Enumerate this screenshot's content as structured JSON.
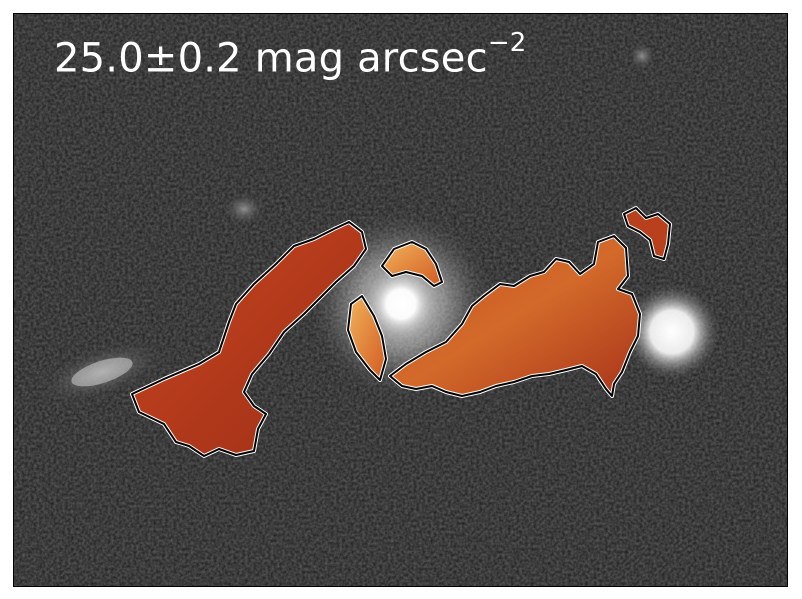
{
  "annotation": {
    "value": "25.0±0.2 mag arcsec",
    "exponent": "−2"
  },
  "colors": {
    "background_sky": "#1a1a1a",
    "star_core": "#ffffff",
    "region_fill_dark": "#a8311a",
    "region_fill_light": "#f0a040",
    "contour": "#000000",
    "contour_halo": "#ffffff"
  }
}
